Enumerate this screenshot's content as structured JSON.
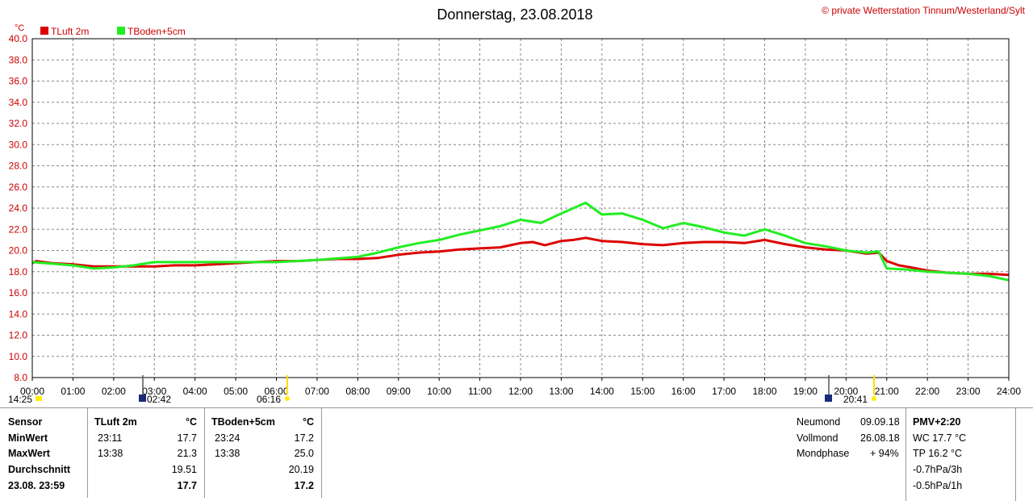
{
  "header": {
    "title": "Donnerstag, 23.08.2018",
    "copyright": "© private Wetterstation Tinnum/Westerland/Sylt",
    "unit": "°C"
  },
  "legend": [
    {
      "name": "TLuft 2m",
      "color": "#dd0000"
    },
    {
      "name": "TBoden+5cm",
      "color": "#22ee22"
    }
  ],
  "markers": {
    "sunrise": "06:16",
    "sunset": "20:41",
    "moonrise": "02:42",
    "moonset": "14:25"
  },
  "chart_data": {
    "type": "line",
    "ylim": [
      8.0,
      40.0
    ],
    "xlim": [
      0,
      24
    ],
    "y_ticks": [
      "8.0",
      "10.0",
      "12.0",
      "14.0",
      "16.0",
      "18.0",
      "20.0",
      "22.0",
      "24.0",
      "26.0",
      "28.0",
      "30.0",
      "32.0",
      "34.0",
      "36.0",
      "38.0",
      "40.0"
    ],
    "x_ticks": [
      "00:00",
      "01:00",
      "02:00",
      "03:00",
      "04:00",
      "05:00",
      "06:00",
      "07:00",
      "08:00",
      "09:00",
      "10:00",
      "11:00",
      "12:00",
      "13:00",
      "14:00",
      "15:00",
      "16:00",
      "17:00",
      "18:00",
      "19:00",
      "20:00",
      "21:00",
      "22:00",
      "23:00",
      "24:00"
    ],
    "grid": true,
    "series": [
      {
        "name": "TLuft 2m",
        "color": "#dd0000",
        "x": [
          0,
          0.1,
          0.5,
          1,
          1.5,
          2,
          2.5,
          3,
          3.5,
          4,
          4.5,
          5,
          5.5,
          6,
          6.5,
          7,
          7.5,
          8,
          8.5,
          9,
          9.5,
          10,
          10.5,
          11,
          11.5,
          12,
          12.3,
          12.6,
          13,
          13.3,
          13.6,
          14,
          14.5,
          15,
          15.5,
          16,
          16.5,
          17,
          17.5,
          18,
          18.5,
          19,
          19.5,
          20,
          20.5,
          20.8,
          21,
          21.3,
          21.6,
          22,
          22.5,
          23,
          23.5,
          24
        ],
        "y": [
          18.8,
          19.0,
          18.8,
          18.7,
          18.5,
          18.5,
          18.5,
          18.5,
          18.6,
          18.6,
          18.7,
          18.8,
          18.9,
          19.0,
          19.0,
          19.1,
          19.2,
          19.2,
          19.3,
          19.6,
          19.8,
          19.9,
          20.1,
          20.2,
          20.3,
          20.7,
          20.8,
          20.5,
          20.9,
          21.0,
          21.2,
          20.9,
          20.8,
          20.6,
          20.5,
          20.7,
          20.8,
          20.8,
          20.7,
          21.0,
          20.6,
          20.3,
          20.1,
          20.0,
          19.7,
          19.8,
          19.0,
          18.6,
          18.4,
          18.1,
          17.9,
          17.8,
          17.8,
          17.7
        ]
      },
      {
        "name": "TBoden+5cm",
        "color": "#22ee22",
        "x": [
          0,
          1,
          1.5,
          2,
          2.5,
          3,
          4,
          5,
          6,
          7,
          8,
          8.5,
          9,
          9.5,
          10,
          10.5,
          11,
          11.5,
          12,
          12.5,
          13,
          13.3,
          13.6,
          14,
          14.5,
          15,
          15.5,
          16,
          16.5,
          17,
          17.5,
          18,
          18.5,
          19,
          19.5,
          20,
          20.5,
          20.8,
          21,
          21.5,
          22,
          23,
          23.5,
          24
        ],
        "y": [
          18.9,
          18.6,
          18.3,
          18.4,
          18.6,
          18.9,
          18.9,
          18.9,
          18.9,
          19.1,
          19.4,
          19.8,
          20.3,
          20.7,
          21.0,
          21.5,
          21.9,
          22.3,
          22.9,
          22.6,
          23.5,
          24.0,
          24.5,
          23.4,
          23.5,
          22.9,
          22.1,
          22.6,
          22.2,
          21.7,
          21.4,
          22.0,
          21.4,
          20.7,
          20.4,
          20.0,
          19.8,
          19.9,
          18.3,
          18.2,
          18.0,
          17.8,
          17.6,
          17.2
        ]
      }
    ]
  },
  "stats": {
    "headers": {
      "sensor": "Sensor",
      "s1": "TLuft 2m",
      "s1_unit": "°C",
      "s2": "TBoden+5cm",
      "s2_unit": "°C"
    },
    "rows": [
      {
        "label": "MinWert",
        "t1": "23:11",
        "v1": "17.7",
        "t2": "23:24",
        "v2": "17.2"
      },
      {
        "label": "MaxWert",
        "t1": "13:38",
        "v1": "21.3",
        "t2": "13:38",
        "v2": "25.0"
      },
      {
        "label": "Durchschnitt",
        "t1": "",
        "v1": "19.51",
        "t2": "",
        "v2": "20.19"
      },
      {
        "label": "23.08.  23:59",
        "t1": "",
        "v1": "17.7",
        "t2": "",
        "v2": "17.2"
      }
    ]
  },
  "moon": {
    "neumond_label": "Neumond",
    "neumond_date": "09.09.18",
    "vollmond_label": "Vollmond",
    "vollmond_date": "26.08.18",
    "phase_label": "Mondphase",
    "phase_value": "+ 94%"
  },
  "pmv": {
    "title": "PMV+2:20",
    "wc": "WC 17.7 °C",
    "tp": "TP 16.2 °C",
    "p3h": "-0.7hPa/3h",
    "p1h": "-0.5hPa/1h"
  }
}
